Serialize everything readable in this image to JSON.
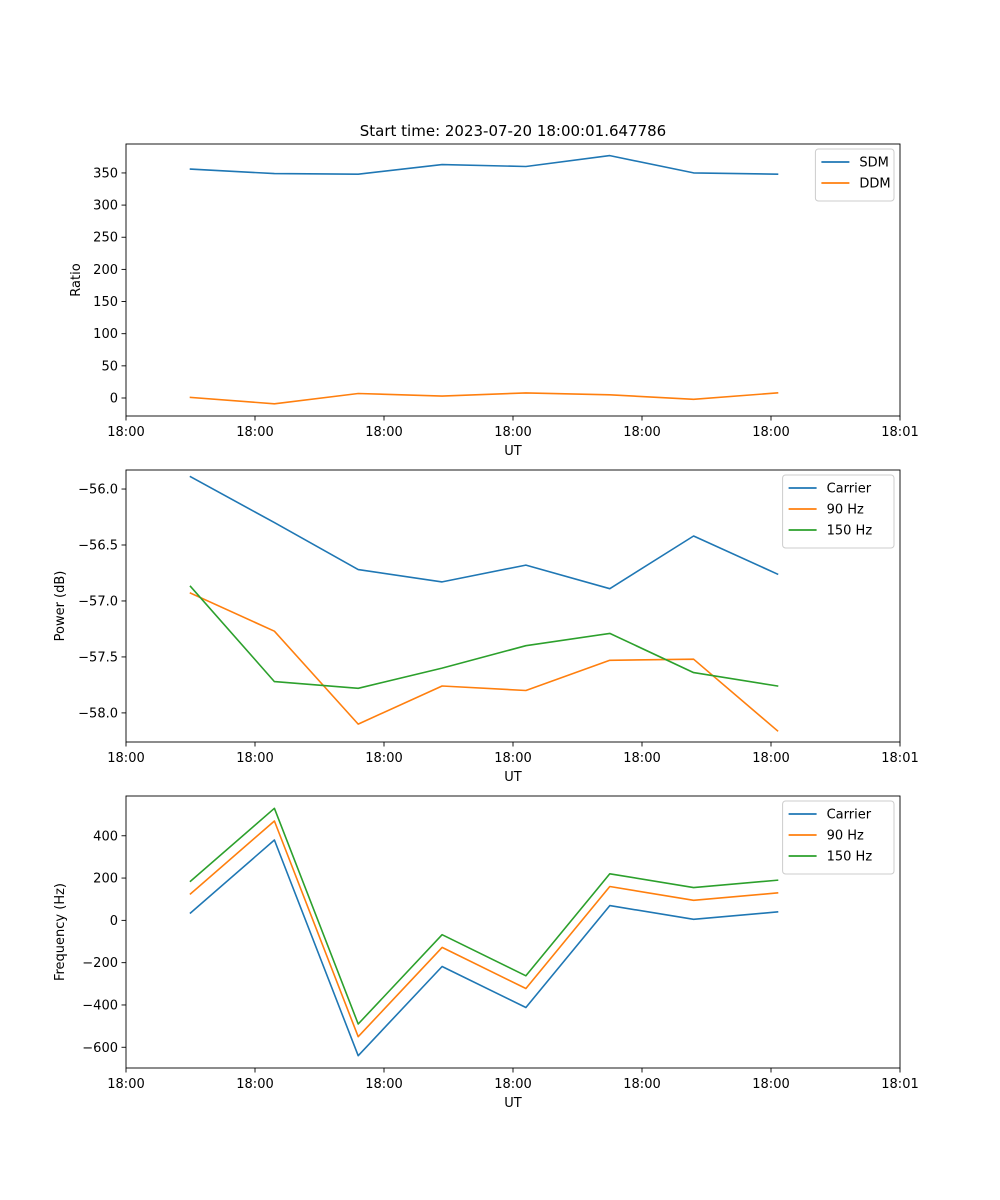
{
  "figure_title": "Start time: 2023-07-20 18:00:01.647786",
  "chart_data": [
    {
      "type": "line",
      "title": "Start time: 2023-07-20 18:00:01.647786",
      "xlabel": "UT",
      "ylabel": "Ratio",
      "x": [
        0.5,
        1.15,
        1.8,
        2.45,
        3.1,
        3.75,
        4.4,
        5.05
      ],
      "xlim": [
        -0.0,
        6.0
      ],
      "xticks": [
        0,
        1,
        2,
        3,
        4,
        5,
        6
      ],
      "xtick_labels": [
        "18:00",
        "18:00",
        "18:00",
        "18:00",
        "18:00",
        "18:00",
        "18:01"
      ],
      "ylim": [
        -28,
        395
      ],
      "yticks": [
        0,
        50,
        100,
        150,
        200,
        250,
        300,
        350
      ],
      "ytick_labels": [
        "0",
        "50",
        "100",
        "150",
        "200",
        "250",
        "300",
        "350"
      ],
      "legend_position": "top-right",
      "series": [
        {
          "name": "SDM",
          "color": "#1f77b4",
          "values": [
            356,
            349,
            348,
            363,
            360,
            377,
            350,
            348
          ]
        },
        {
          "name": "DDM",
          "color": "#ff7f0e",
          "values": [
            1,
            -9,
            7,
            3,
            8,
            5,
            -2,
            8
          ]
        }
      ]
    },
    {
      "type": "line",
      "title": "",
      "xlabel": "UT",
      "ylabel": "Power (dB)",
      "x": [
        0.5,
        1.15,
        1.8,
        2.45,
        3.1,
        3.75,
        4.4,
        5.05
      ],
      "xlim": [
        -0.0,
        6.0
      ],
      "xticks": [
        0,
        1,
        2,
        3,
        4,
        5,
        6
      ],
      "xtick_labels": [
        "18:00",
        "18:00",
        "18:00",
        "18:00",
        "18:00",
        "18:00",
        "18:01"
      ],
      "ylim": [
        -58.26,
        -55.83
      ],
      "yticks": [
        -58.0,
        -57.5,
        -57.0,
        -56.5,
        -56.0
      ],
      "ytick_labels": [
        "−58.0",
        "−57.5",
        "−57.0",
        "−56.5",
        "−56.0"
      ],
      "legend_position": "top-right",
      "series": [
        {
          "name": "Carrier",
          "color": "#1f77b4",
          "values": [
            -55.89,
            -56.3,
            -56.72,
            -56.83,
            -56.68,
            -56.89,
            -56.42,
            -56.76
          ]
        },
        {
          "name": "90 Hz",
          "color": "#ff7f0e",
          "values": [
            -56.93,
            -57.27,
            -58.1,
            -57.76,
            -57.8,
            -57.53,
            -57.52,
            -58.16
          ]
        },
        {
          "name": "150 Hz",
          "color": "#2ca02c",
          "values": [
            -56.87,
            -57.72,
            -57.78,
            -57.6,
            -57.4,
            -57.29,
            -57.64,
            -57.76
          ]
        }
      ]
    },
    {
      "type": "line",
      "title": "",
      "xlabel": "UT",
      "ylabel": "Frequency (Hz)",
      "x": [
        0.5,
        1.15,
        1.8,
        2.45,
        3.1,
        3.75,
        4.4,
        5.05
      ],
      "xlim": [
        -0.0,
        6.0
      ],
      "xticks": [
        0,
        1,
        2,
        3,
        4,
        5,
        6
      ],
      "xtick_labels": [
        "18:00",
        "18:00",
        "18:00",
        "18:00",
        "18:00",
        "18:00",
        "18:01"
      ],
      "ylim": [
        -698,
        588
      ],
      "yticks": [
        -600,
        -400,
        -200,
        0,
        200,
        400
      ],
      "ytick_labels": [
        "−600",
        "−400",
        "−200",
        "0",
        "200",
        "400"
      ],
      "legend_position": "top-right",
      "series": [
        {
          "name": "Carrier",
          "color": "#1f77b4",
          "values": [
            35,
            380,
            -640,
            -218,
            -412,
            70,
            5,
            40
          ]
        },
        {
          "name": "90 Hz",
          "color": "#ff7f0e",
          "values": [
            125,
            470,
            -550,
            -128,
            -322,
            160,
            95,
            130
          ]
        },
        {
          "name": "150 Hz",
          "color": "#2ca02c",
          "values": [
            185,
            530,
            -490,
            -68,
            -262,
            220,
            155,
            190
          ]
        }
      ]
    }
  ]
}
